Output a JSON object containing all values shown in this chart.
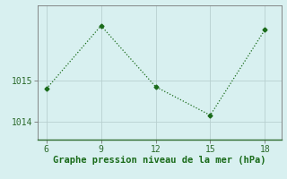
{
  "x": [
    6,
    9,
    12,
    15,
    18
  ],
  "y": [
    1014.8,
    1016.35,
    1014.85,
    1014.15,
    1016.25
  ],
  "line_color": "#1a6b1a",
  "marker": "D",
  "marker_size": 2.5,
  "background_color": "#d8f0f0",
  "grid_color": "#b8d0d0",
  "xlabel": "Graphe pression niveau de la mer (hPa)",
  "xlabel_color": "#1a6b1a",
  "xlabel_fontsize": 7.5,
  "ytick_labels": [
    "1014",
    "1015"
  ],
  "ytick_values": [
    1014,
    1015
  ],
  "xtick_values": [
    6,
    9,
    12,
    15,
    18
  ],
  "xlim": [
    5.5,
    18.9
  ],
  "ylim": [
    1013.55,
    1016.85
  ],
  "tick_color": "#2d6b2d",
  "tick_fontsize": 7.0,
  "spine_color": "#777777"
}
